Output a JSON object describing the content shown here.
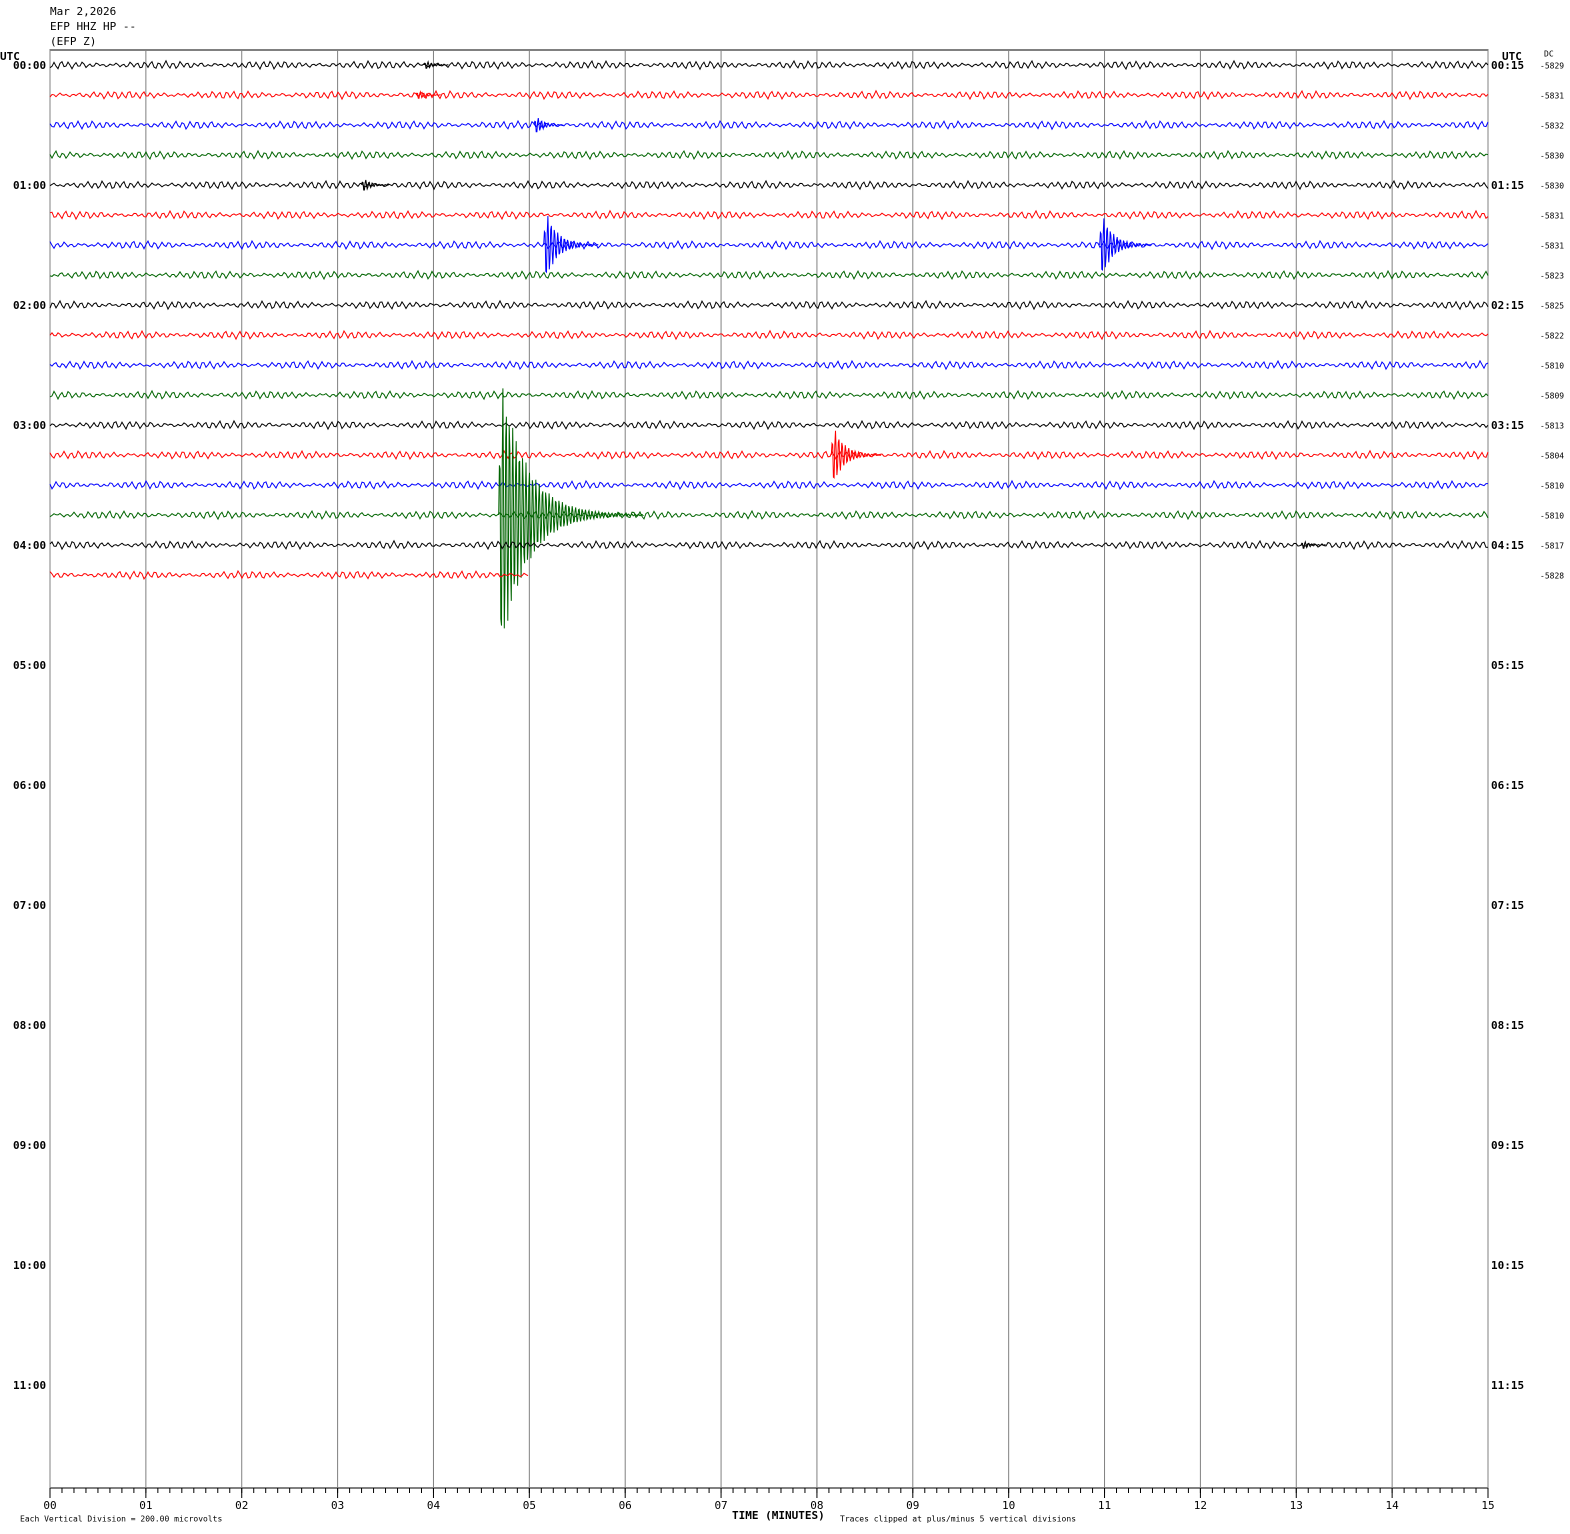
{
  "chart_data": {
    "type": "helicorder",
    "title": "Mar 2,2026",
    "subtitle": [
      "EFP HHZ HP --",
      "(EFP Z)"
    ],
    "time_zone_label": "UTC",
    "dc_label": "DC",
    "xlabel": "TIME (MINUTES)",
    "xlim": [
      0,
      15
    ],
    "xticks": [
      {
        "value": 0,
        "label": "00"
      },
      {
        "value": 1,
        "label": "01"
      },
      {
        "value": 2,
        "label": "02"
      },
      {
        "value": 3,
        "label": "03"
      },
      {
        "value": 4,
        "label": "04"
      },
      {
        "value": 5,
        "label": "05"
      },
      {
        "value": 6,
        "label": "06"
      },
      {
        "value": 7,
        "label": "07"
      },
      {
        "value": 8,
        "label": "08"
      },
      {
        "value": 9,
        "label": "09"
      },
      {
        "value": 10,
        "label": "10"
      },
      {
        "value": 11,
        "label": "11"
      },
      {
        "value": 12,
        "label": "12"
      },
      {
        "value": 13,
        "label": "13"
      },
      {
        "value": 14,
        "label": "14"
      },
      {
        "value": 15,
        "label": "15"
      }
    ],
    "row_labels_left": [
      "00:00",
      "01:00",
      "02:00",
      "03:00",
      "04:00",
      "05:00",
      "06:00",
      "07:00",
      "08:00",
      "09:00",
      "10:00",
      "11:00"
    ],
    "row_labels_right": [
      "00:15",
      "01:15",
      "02:15",
      "03:15",
      "04:15",
      "05:15",
      "06:15",
      "07:15",
      "08:15",
      "09:15",
      "10:15",
      "11:15"
    ],
    "traces": [
      {
        "color": "#000000",
        "dc": -5829,
        "events": [
          {
            "minute": 3.9,
            "amplitude": 0.2
          }
        ]
      },
      {
        "color": "#ff0000",
        "dc": -5831,
        "events": [
          {
            "minute": 3.82,
            "amplitude": 0.2
          }
        ]
      },
      {
        "color": "#0000ff",
        "dc": -5832,
        "events": [
          {
            "minute": 5.05,
            "amplitude": 0.4
          }
        ]
      },
      {
        "color": "#006400",
        "dc": -5830,
        "events": []
      },
      {
        "color": "#000000",
        "dc": -5830,
        "events": [
          {
            "minute": 3.25,
            "amplitude": 0.3
          }
        ]
      },
      {
        "color": "#ff0000",
        "dc": -5831,
        "events": []
      },
      {
        "color": "#0000ff",
        "dc": -5831,
        "events": [
          {
            "minute": 5.15,
            "amplitude": 1.4
          },
          {
            "minute": 10.95,
            "amplitude": 1.3
          }
        ]
      },
      {
        "color": "#006400",
        "dc": -5823,
        "events": []
      },
      {
        "color": "#000000",
        "dc": -5825,
        "events": []
      },
      {
        "color": "#ff0000",
        "dc": -5822,
        "events": []
      },
      {
        "color": "#0000ff",
        "dc": -5810,
        "events": []
      },
      {
        "color": "#006400",
        "dc": -5809,
        "events": []
      },
      {
        "color": "#000000",
        "dc": -5813,
        "events": []
      },
      {
        "color": "#ff0000",
        "dc": -5804,
        "events": [
          {
            "minute": 8.15,
            "amplitude": 1.2
          }
        ]
      },
      {
        "color": "#0000ff",
        "dc": -5810,
        "events": []
      },
      {
        "color": "#006400",
        "dc": -5810,
        "events": [
          {
            "minute": 4.68,
            "amplitude": 5
          }
        ]
      },
      {
        "color": "#000000",
        "dc": -5817,
        "events": [
          {
            "minute": 13.05,
            "amplitude": 0.2
          }
        ]
      },
      {
        "color": "#ff0000",
        "dc": -5828,
        "events": [],
        "end_minute": 5
      }
    ],
    "clip_divisions": 5,
    "scale_note": "Each Vertical Division =  200.00 microvolts",
    "clip_note": "Traces clipped at plus/minus 5 vertical divisions"
  }
}
